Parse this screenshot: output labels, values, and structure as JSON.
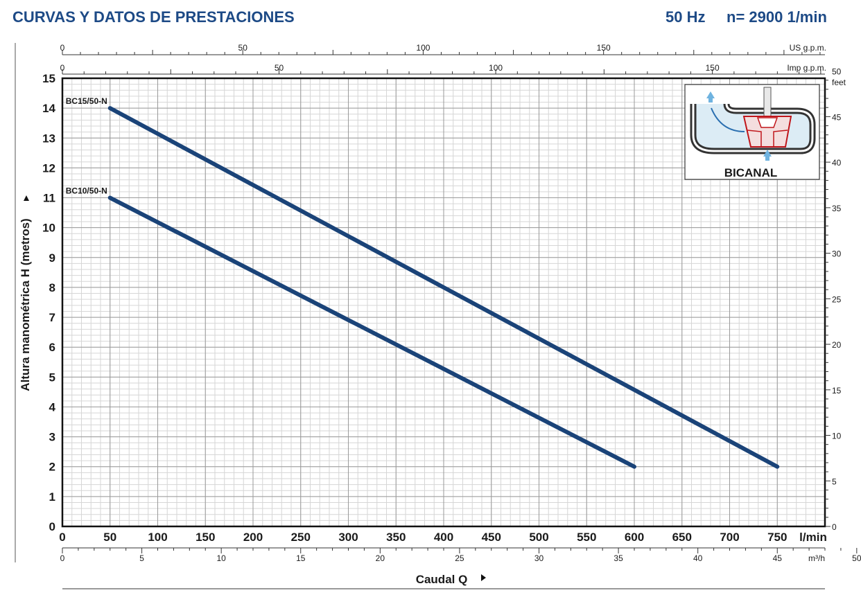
{
  "header": {
    "title": "CURVAS Y DATOS DE PRESTACIONES",
    "frequency": "50 Hz",
    "speed": "n= 2900  1/min"
  },
  "chart_data": {
    "type": "line",
    "ylabel": "Altura manométrica H (metros)",
    "xlabel": "Caudal Q",
    "x_unit_main": "l/min",
    "x_unit_m3h": "m³/h",
    "x_unit_usgpm": "US g.p.m.",
    "x_unit_impgpm": "Imp g.p.m.",
    "y_unit_feet": "feet",
    "xlim": [
      0,
      800
    ],
    "ylim": [
      0,
      15
    ],
    "grid": true,
    "x_ticks_lmin": [
      0,
      50,
      100,
      150,
      200,
      250,
      300,
      350,
      400,
      450,
      500,
      550,
      600,
      650,
      700,
      750
    ],
    "x_ticks_m3h": [
      0,
      5,
      10,
      15,
      20,
      25,
      30,
      35,
      40,
      45,
      50
    ],
    "x_ticks_usgpm": [
      0,
      50,
      100,
      150
    ],
    "x_ticks_impgpm": [
      0,
      50,
      100,
      150
    ],
    "y_ticks_m": [
      0,
      1,
      2,
      3,
      4,
      5,
      6,
      7,
      8,
      9,
      10,
      11,
      12,
      13,
      14,
      15
    ],
    "y_ticks_feet": [
      0,
      5,
      10,
      15,
      20,
      25,
      30,
      35,
      40,
      45,
      50
    ],
    "series": [
      {
        "name": "BC15/50-N",
        "x": [
          50,
          750
        ],
        "y": [
          14,
          2
        ],
        "color": "#1a4378"
      },
      {
        "name": "BC10/50-N",
        "x": [
          50,
          600
        ],
        "y": [
          11,
          2
        ],
        "color": "#1a4378"
      }
    ]
  },
  "inset": {
    "label": "BICANAL"
  }
}
